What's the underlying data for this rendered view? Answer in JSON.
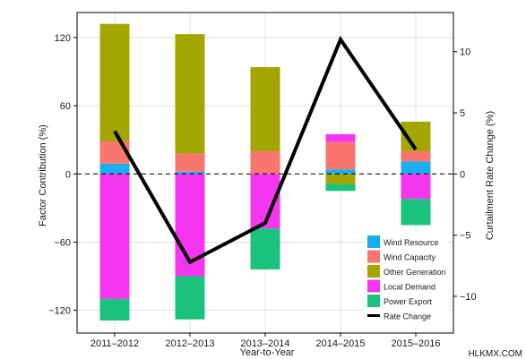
{
  "chart_data": {
    "type": "bar",
    "stacked": true,
    "title": "",
    "xlabel": "Year-to-Year",
    "ylabel": "Factor Contribution (%)",
    "y2label": "Curtailment Rate Change (%)",
    "categories": [
      "2011–2012",
      "2012–2013",
      "2013–2014",
      "2014–2015",
      "2015–2016"
    ],
    "ylim": [
      -140,
      142
    ],
    "y2lim": [
      -13.0,
      13.2
    ],
    "yticks": [
      -120,
      -60,
      0,
      60,
      120
    ],
    "yticklabels": [
      "−120",
      "−60",
      "0",
      "60",
      "120"
    ],
    "y2ticks": [
      -10,
      -5,
      0,
      5,
      10
    ],
    "y2ticklabels": [
      "−10",
      "−5",
      "0",
      "5",
      "10"
    ],
    "grid": true,
    "zero_line": "dashed",
    "legend_position": "bottom-right",
    "series": [
      {
        "name": "Wind Resource",
        "color": "#1aadf0",
        "values": [
          9,
          2,
          0,
          4,
          11
        ]
      },
      {
        "name": "Wind Capacity",
        "color": "#f8766d",
        "values": [
          20,
          16,
          20,
          24,
          9
        ]
      },
      {
        "name": "Other Generation",
        "color": "#a3a500",
        "values": [
          103,
          105,
          74,
          -9,
          26
        ]
      },
      {
        "name": "Local Demand",
        "color": "#f536f0",
        "values": [
          -110,
          -90,
          -48,
          7,
          -22
        ]
      },
      {
        "name": "Power Export",
        "color": "#1ac27e",
        "values": [
          -19,
          -38,
          -36,
          -6,
          -23
        ]
      }
    ],
    "line": {
      "name": "Rate Change",
      "color": "#000000",
      "values": [
        3.5,
        -7.2,
        -4.0,
        11.0,
        2.0
      ]
    }
  },
  "watermark": "HLKMX.COM"
}
